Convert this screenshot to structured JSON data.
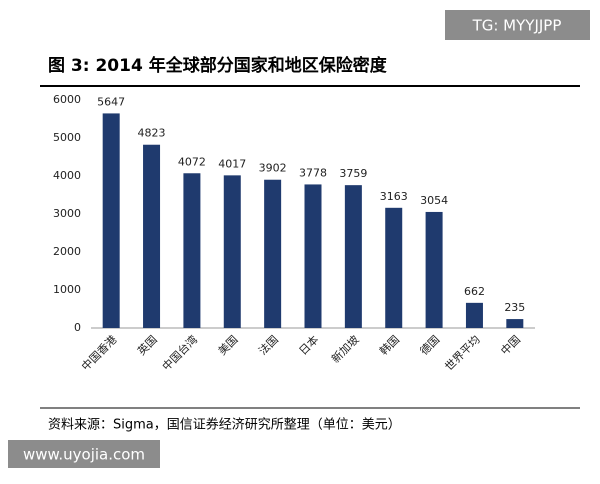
{
  "chart_data": {
    "type": "bar",
    "title": "图 3:  2014 年全球部分国家和地区保险密度",
    "source": "资料来源：Sigma，国信证券经济研究所整理（单位：美元）",
    "watermarks": [
      "TG: MYYJJPP",
      "www.uyojia.com"
    ],
    "categories": [
      "中国香港",
      "英国",
      "中国台湾",
      "美国",
      "法国",
      "日本",
      "新加坡",
      "韩国",
      "德国",
      "世界平均",
      "中国"
    ],
    "values": [
      5647,
      4823,
      4072,
      4017,
      3902,
      3778,
      3759,
      3163,
      3054,
      662,
      235
    ],
    "color": "#1f3a6e",
    "ylim": [
      0,
      6000
    ],
    "yticks": [
      0,
      1000,
      2000,
      3000,
      4000,
      5000,
      6000
    ],
    "grid": false
  }
}
